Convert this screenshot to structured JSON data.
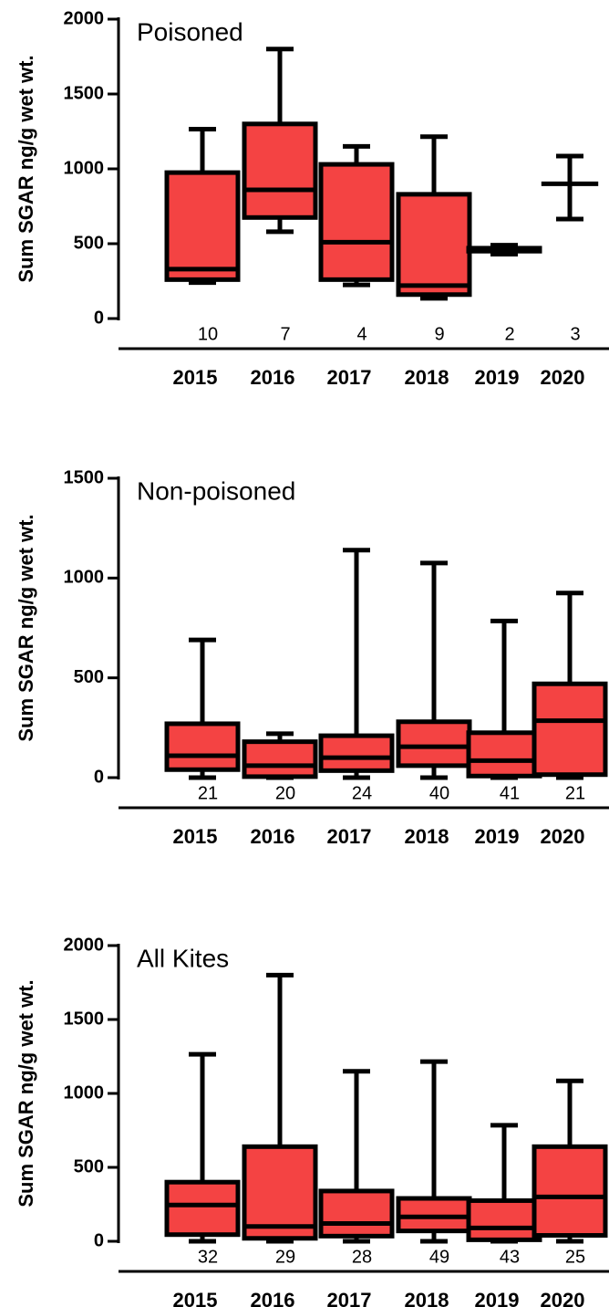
{
  "chart_data": [
    {
      "type": "box",
      "title": "Poisoned",
      "ylabel": "Sum SGAR ng/g wet wt.",
      "color": "#f44343",
      "categories": [
        "2015",
        "2016",
        "2017",
        "2018",
        "2019",
        "2020"
      ],
      "n": [
        10,
        7,
        4,
        9,
        2,
        3
      ],
      "min": [
        240,
        580,
        225,
        135,
        430,
        665
      ],
      "q1": [
        260,
        675,
        260,
        160,
        450,
        null
      ],
      "median": [
        330,
        860,
        510,
        220,
        460,
        900
      ],
      "q3": [
        975,
        1300,
        1030,
        830,
        470,
        null
      ],
      "max": [
        1265,
        1800,
        1150,
        1215,
        490,
        1085
      ],
      "ylim": [
        0,
        2000
      ],
      "yticks": [
        0,
        500,
        1000,
        1500,
        2000
      ]
    },
    {
      "type": "box",
      "title": "Non-poisoned",
      "ylabel": "Sum SGAR ng/g wet wt.",
      "color": "#f44343",
      "categories": [
        "2015",
        "2016",
        "2017",
        "2018",
        "2019",
        "2020"
      ],
      "n": [
        21,
        20,
        24,
        40,
        41,
        21
      ],
      "min": [
        0,
        0,
        0,
        0,
        0,
        0
      ],
      "q1": [
        40,
        5,
        35,
        60,
        8,
        15
      ],
      "median": [
        110,
        60,
        100,
        155,
        85,
        285
      ],
      "q3": [
        270,
        180,
        210,
        280,
        225,
        470
      ],
      "max": [
        690,
        220,
        1140,
        1075,
        785,
        925
      ],
      "ylim": [
        0,
        1500
      ],
      "yticks": [
        0,
        500,
        1000,
        1500
      ]
    },
    {
      "type": "box",
      "title": "All Kites",
      "ylabel": "Sum SGAR ng/g wet wt.",
      "color": "#f44343",
      "categories": [
        "2015",
        "2016",
        "2017",
        "2018",
        "2019",
        "2020"
      ],
      "n": [
        32,
        29,
        28,
        49,
        43,
        25
      ],
      "min": [
        0,
        0,
        0,
        0,
        0,
        0
      ],
      "q1": [
        45,
        20,
        35,
        70,
        10,
        40
      ],
      "median": [
        245,
        100,
        120,
        165,
        90,
        300
      ],
      "q3": [
        400,
        640,
        340,
        290,
        275,
        640
      ],
      "max": [
        1265,
        1800,
        1150,
        1215,
        785,
        1085
      ],
      "ylim": [
        0,
        2000
      ],
      "yticks": [
        0,
        500,
        1000,
        1500,
        2000
      ]
    }
  ]
}
